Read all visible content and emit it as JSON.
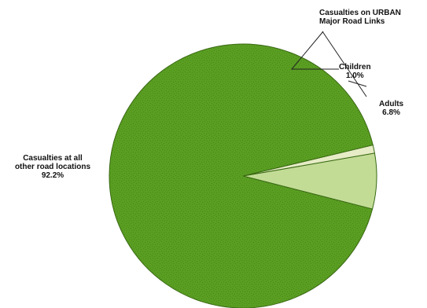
{
  "chart_data": {
    "type": "pie",
    "title": "",
    "slices": [
      {
        "label": [
          "Casualties at all",
          "other road locations"
        ],
        "value_label": "92.2%",
        "value": 92.2,
        "color": "#5a9e22"
      },
      {
        "label": [
          "Adults"
        ],
        "value_label": "6.8%",
        "value": 6.8,
        "color": "#c2dc96"
      },
      {
        "label": [
          "Children"
        ],
        "value_label": "1.0%",
        "value": 1.0,
        "color": "#e6ecc6"
      }
    ],
    "group_label": [
      "Casualties on URBAN",
      "Major Road Links"
    ],
    "colors": {
      "outline": "#3a6a14",
      "background": "#ffffff"
    }
  }
}
